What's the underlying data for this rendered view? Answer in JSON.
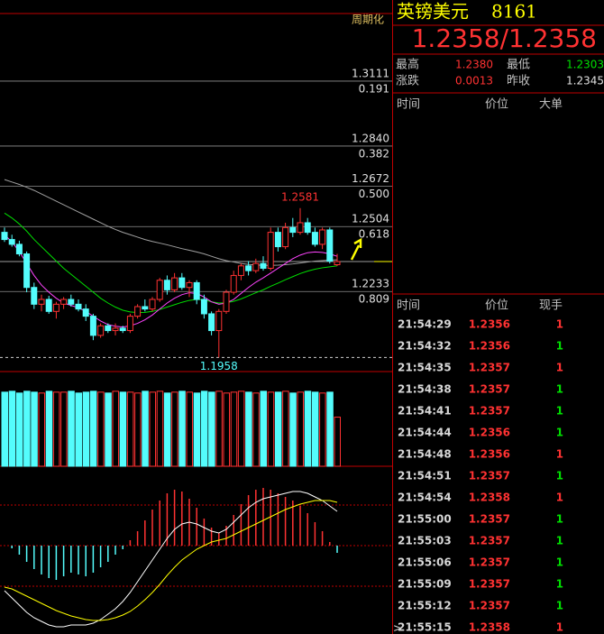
{
  "chart": {
    "type": "candlestick",
    "period_label": "周期化",
    "ylim": [
      1.1899,
      1.3393
    ],
    "up_color": "#ff3232",
    "down_color": "#54fcfc",
    "candles": {
      "open": [
        1.248,
        1.245,
        1.243,
        1.239,
        1.225,
        1.218,
        1.22,
        1.215,
        1.218,
        1.22,
        1.218,
        1.216,
        1.213,
        1.205,
        1.209,
        1.207,
        1.208,
        1.207,
        1.213,
        1.217,
        1.216,
        1.22,
        1.228,
        1.224,
        1.229,
        1.225,
        1.227,
        1.22,
        1.214,
        1.207,
        1.215,
        1.223,
        1.23,
        1.234,
        1.232,
        1.235,
        1.233,
        1.248,
        1.242,
        1.25,
        1.248,
        1.252,
        1.248,
        1.243,
        1.249,
        1.2345
      ],
      "high": [
        1.25,
        1.247,
        1.2445,
        1.24,
        1.227,
        1.222,
        1.2215,
        1.219,
        1.221,
        1.222,
        1.22,
        1.218,
        1.214,
        1.21,
        1.21,
        1.21,
        1.209,
        1.214,
        1.218,
        1.22,
        1.221,
        1.229,
        1.23,
        1.231,
        1.231,
        1.228,
        1.228,
        1.222,
        1.215,
        1.216,
        1.224,
        1.232,
        1.235,
        1.236,
        1.237,
        1.238,
        1.25,
        1.25,
        1.252,
        1.254,
        1.2581,
        1.254,
        1.25,
        1.25,
        1.25,
        1.239
      ],
      "low": [
        1.244,
        1.242,
        1.238,
        1.223,
        1.216,
        1.215,
        1.214,
        1.212,
        1.216,
        1.217,
        1.215,
        1.211,
        1.203,
        1.204,
        1.206,
        1.205,
        1.206,
        1.206,
        1.212,
        1.215,
        1.215,
        1.219,
        1.222,
        1.223,
        1.224,
        1.221,
        1.218,
        1.212,
        1.205,
        1.1958,
        1.214,
        1.222,
        1.228,
        1.23,
        1.231,
        1.232,
        1.232,
        1.24,
        1.241,
        1.246,
        1.247,
        1.247,
        1.242,
        1.241,
        1.235,
        1.234
      ],
      "close": [
        1.245,
        1.243,
        1.239,
        1.225,
        1.218,
        1.22,
        1.215,
        1.218,
        1.22,
        1.218,
        1.216,
        1.213,
        1.205,
        1.209,
        1.207,
        1.208,
        1.207,
        1.213,
        1.217,
        1.216,
        1.22,
        1.228,
        1.224,
        1.229,
        1.225,
        1.227,
        1.22,
        1.214,
        1.207,
        1.215,
        1.223,
        1.23,
        1.234,
        1.232,
        1.235,
        1.233,
        1.248,
        1.242,
        1.25,
        1.248,
        1.252,
        1.248,
        1.243,
        1.249,
        1.236,
        1.2358
      ]
    },
    "moving_averages": [
      {
        "color": "#a0a0a0",
        "values": [
          1.27,
          1.269,
          1.268,
          1.2668,
          1.2655,
          1.264,
          1.2625,
          1.261,
          1.2595,
          1.258,
          1.2565,
          1.255,
          1.2535,
          1.252,
          1.2505,
          1.2492,
          1.248,
          1.247,
          1.246,
          1.245,
          1.2442,
          1.2435,
          1.2428,
          1.242,
          1.2412,
          1.2405,
          1.2398,
          1.239,
          1.238,
          1.237,
          1.2362,
          1.2356,
          1.235,
          1.2346,
          1.2344,
          1.2342,
          1.2342,
          1.2343,
          1.2345,
          1.2348,
          1.2352,
          1.2356,
          1.236,
          1.2362,
          1.2364,
          1.2365
        ]
      },
      {
        "color": "#00e000",
        "values": [
          1.256,
          1.254,
          1.2515,
          1.2485,
          1.245,
          1.242,
          1.239,
          1.236,
          1.233,
          1.2305,
          1.228,
          1.2255,
          1.223,
          1.2205,
          1.2185,
          1.2168,
          1.2155,
          1.2148,
          1.2145,
          1.2146,
          1.215,
          1.2158,
          1.2168,
          1.2178,
          1.2188,
          1.2196,
          1.22,
          1.2198,
          1.219,
          1.2185,
          1.2186,
          1.2192,
          1.2202,
          1.2215,
          1.2228,
          1.224,
          1.2255,
          1.2268,
          1.2282,
          1.2295,
          1.2308,
          1.2318,
          1.2326,
          1.2332,
          1.2336,
          1.234
        ]
      },
      {
        "color": "#ff44ff",
        "values": [
          1.247,
          1.244,
          1.24,
          1.235,
          1.23,
          1.226,
          1.223,
          1.2205,
          1.2185,
          1.2175,
          1.2165,
          1.215,
          1.213,
          1.211,
          1.2095,
          1.2088,
          1.2085,
          1.209,
          1.21,
          1.2115,
          1.2135,
          1.216,
          1.2185,
          1.2205,
          1.222,
          1.2228,
          1.2225,
          1.221,
          1.219,
          1.218,
          1.2185,
          1.22,
          1.2225,
          1.225,
          1.2272,
          1.229,
          1.231,
          1.233,
          1.235,
          1.237,
          1.2385,
          1.2395,
          1.2398,
          1.2396,
          1.239,
          1.238
        ]
      }
    ],
    "levels": [
      {
        "value": 1.3111,
        "label": "1.3111",
        "ratio": "0.191"
      },
      {
        "value": 1.284,
        "label": "1.2840",
        "ratio": "0.382"
      },
      {
        "value": 1.2672,
        "label": "1.2672",
        "ratio": "0.500"
      },
      {
        "value": 1.2504,
        "label": "1.2504",
        "ratio": "0.618"
      },
      {
        "value": 1.2233,
        "label": "1.2233",
        "ratio": "0.809"
      }
    ],
    "annotations": [
      {
        "value": 1.2581,
        "label": "1.2581"
      },
      {
        "value": 1.1958,
        "label": "1.1958"
      }
    ],
    "volume": {
      "ylim": [
        0,
        100
      ],
      "values": [
        83,
        84,
        82,
        84,
        83,
        82,
        84,
        83,
        83,
        84,
        82,
        83,
        84,
        83,
        82,
        84,
        83,
        83,
        82,
        84,
        83,
        84,
        82,
        83,
        84,
        83,
        82,
        84,
        83,
        84,
        82,
        83,
        84,
        83,
        82,
        84,
        83,
        83,
        84,
        82,
        83,
        84,
        83,
        82,
        83,
        55
      ]
    },
    "macd": {
      "ylim": [
        -98,
        88
      ],
      "grid": [
        -45,
        0,
        45
      ],
      "hist": [
        0,
        -3,
        -10,
        -18,
        -26,
        -32,
        -36,
        -38,
        -34,
        -30,
        -32,
        -34,
        -30,
        -24,
        -18,
        -10,
        -4,
        6,
        16,
        28,
        40,
        50,
        58,
        62,
        60,
        52,
        42,
        30,
        20,
        14,
        22,
        34,
        46,
        56,
        62,
        64,
        62,
        58,
        54,
        50,
        44,
        36,
        26,
        16,
        4,
        -8
      ],
      "dif": {
        "color": "#ffffff",
        "values": [
          -50,
          -58,
          -66,
          -74,
          -80,
          -84,
          -88,
          -90,
          -90,
          -88,
          -88,
          -88,
          -86,
          -82,
          -76,
          -70,
          -62,
          -52,
          -40,
          -28,
          -16,
          -4,
          8,
          18,
          24,
          26,
          24,
          20,
          16,
          14,
          18,
          26,
          34,
          42,
          48,
          52,
          54,
          56,
          58,
          60,
          60,
          58,
          54,
          50,
          44,
          38
        ]
      },
      "dea": {
        "color": "#ffff00",
        "values": [
          -46,
          -48,
          -52,
          -56,
          -60,
          -64,
          -68,
          -72,
          -75,
          -78,
          -80,
          -82,
          -83,
          -83,
          -82,
          -80,
          -77,
          -73,
          -67,
          -60,
          -52,
          -43,
          -33,
          -24,
          -16,
          -10,
          -4,
          0,
          4,
          6,
          8,
          12,
          16,
          20,
          24,
          28,
          32,
          36,
          40,
          43,
          46,
          48,
          50,
          50,
          50,
          48
        ]
      }
    }
  },
  "quote": {
    "symbol": "英镑美元",
    "code": "8161",
    "price": "1.2358/1.2358",
    "rows": [
      [
        "最高",
        "1.2380",
        "最低",
        "1.2303"
      ],
      [
        "涨跌",
        "0.0013",
        "昨收",
        "1.2345"
      ]
    ]
  },
  "big_orders": {
    "header": [
      "时间",
      "价位",
      "大单"
    ]
  },
  "trades": {
    "header": [
      "时间",
      "价位",
      "现手"
    ],
    "rows": [
      [
        "21:54:29",
        "1.2356",
        1
      ],
      [
        "21:54:32",
        "1.2356",
        1
      ],
      [
        "21:54:35",
        "1.2357",
        1
      ],
      [
        "21:54:38",
        "1.2357",
        1
      ],
      [
        "21:54:41",
        "1.2357",
        1
      ],
      [
        "21:54:44",
        "1.2356",
        1
      ],
      [
        "21:54:48",
        "1.2356",
        1
      ],
      [
        "21:54:51",
        "1.2357",
        1
      ],
      [
        "21:54:54",
        "1.2358",
        1
      ],
      [
        "21:55:00",
        "1.2357",
        1
      ],
      [
        "21:55:03",
        "1.2357",
        1
      ],
      [
        "21:55:06",
        "1.2357",
        1
      ],
      [
        "21:55:09",
        "1.2357",
        1
      ],
      [
        "21:55:12",
        "1.2357",
        1
      ],
      [
        "21:55:15",
        "1.2358",
        1
      ]
    ],
    "qty_colors": [
      "#ff3232",
      "#00e000",
      "#ff3232",
      "#00e000",
      "#00e000",
      "#00e000",
      "#ff3232",
      "#00e000",
      "#ff3232",
      "#00e000",
      "#00e000",
      "#00e000",
      "#00e000",
      "#00e000",
      "#ff3232"
    ]
  }
}
